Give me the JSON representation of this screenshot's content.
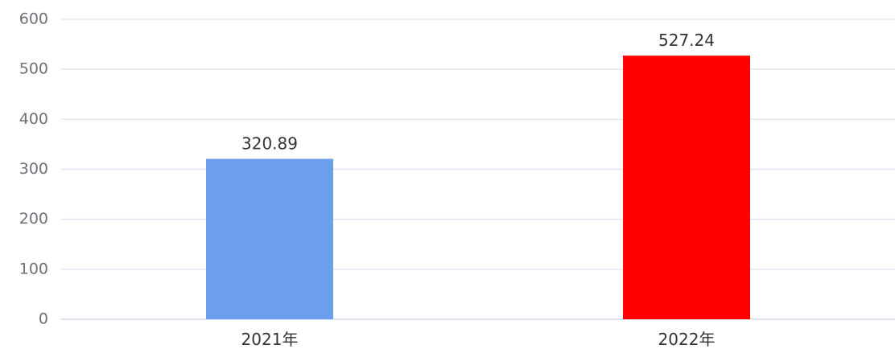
{
  "chart_data": {
    "type": "bar",
    "title": "",
    "xlabel": "",
    "ylabel": "",
    "categories": [
      "2021年",
      "2022年"
    ],
    "values": [
      320.89,
      527.24
    ],
    "value_labels": [
      "320.89",
      "527.24"
    ],
    "bar_colors": [
      "#6d9eeb",
      "#ff0000"
    ],
    "ylim": [
      0,
      600
    ],
    "yticks": [
      0,
      100,
      200,
      300,
      400,
      500,
      600
    ],
    "grid": true,
    "legend": "none"
  }
}
